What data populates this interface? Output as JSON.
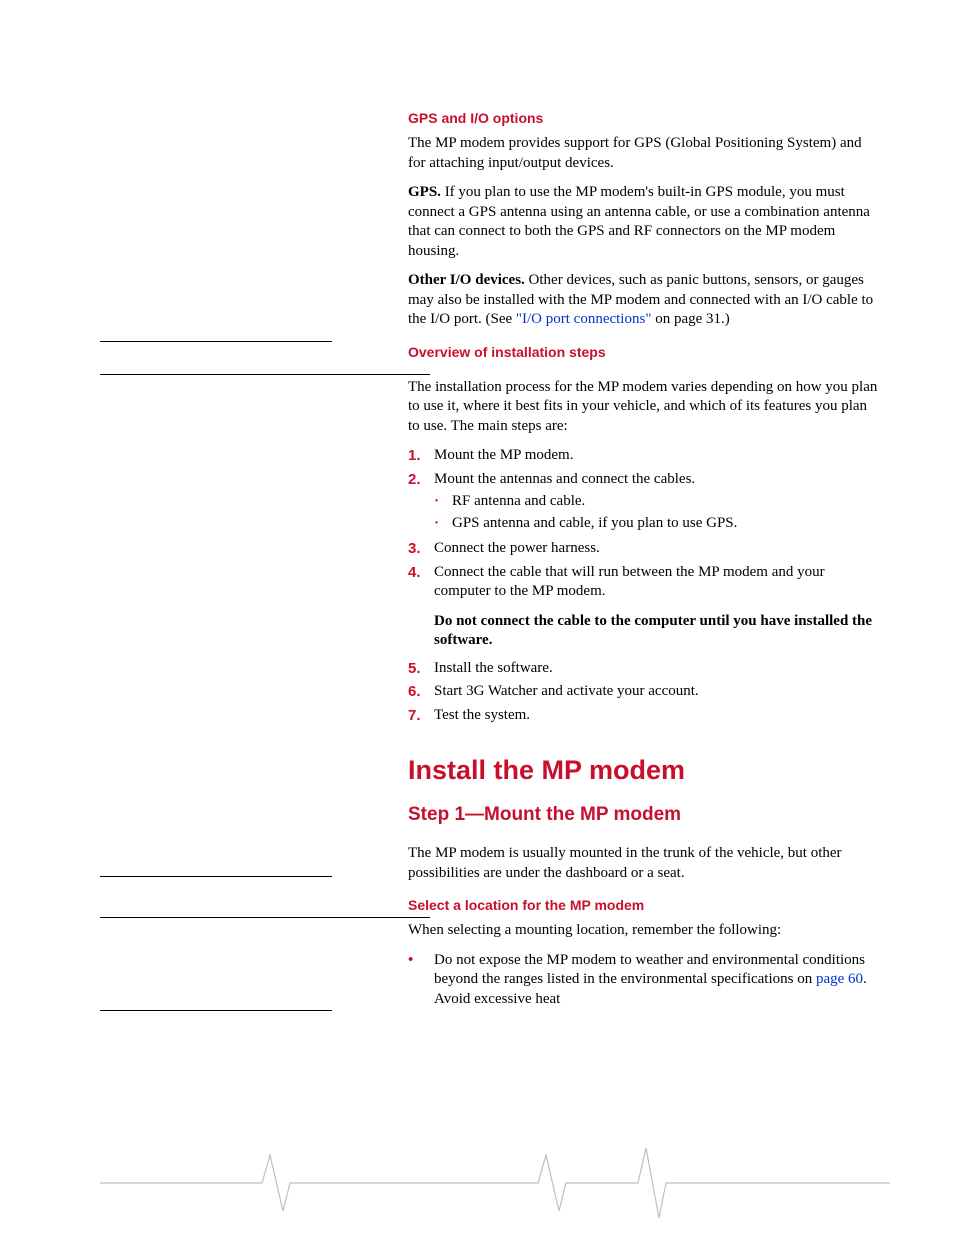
{
  "colors": {
    "accent": "#c8102e",
    "link": "#0033cc",
    "text": "#000000",
    "background": "#ffffff",
    "rule": "#000000"
  },
  "typography": {
    "body_family": "Palatino",
    "heading_family": "Arial",
    "body_size_pt": 15,
    "h1_size_pt": 27,
    "h2_size_pt": 19,
    "h3_size_pt": 14
  },
  "rules": {
    "short_top_1": 341,
    "long_top_1": 374,
    "short_top_2": 876,
    "long_top_2": 917,
    "short_top_3": 1010
  },
  "section1": {
    "heading": "GPS and I/O options",
    "p1": "The MP modem provides support for GPS (Global Positioning System) and for attaching input/output devices.",
    "p2_bold": "GPS.",
    "p2": " If you plan to use the MP modem's built-in GPS module, you must connect a GPS antenna using an antenna cable, or use a combination antenna that can connect to both the GPS and RF connectors on the MP modem housing.",
    "p3_bold": "Other I/O devices.",
    "p3a": " Other devices, such as panic buttons, sensors, or gauges may also be installed with the MP modem and connected with an I/O cable to the I/O port. (See ",
    "p3_link": "\"I/O port connections\"",
    "p3b": " on page 31.)"
  },
  "section2": {
    "heading": "Overview of installation steps",
    "intro": "The installation process for the MP modem varies depending on how you plan to use it, where it best fits in your vehicle, and which of its features you plan to use. The main steps are:",
    "steps": [
      {
        "n": "1.",
        "t": "Mount the MP modem."
      },
      {
        "n": "2.",
        "t": "Mount the antennas and connect the cables.",
        "sub": [
          "RF antenna and cable.",
          "GPS antenna and cable, if you plan to use GPS."
        ]
      },
      {
        "n": "3.",
        "t": "Connect the power harness."
      },
      {
        "n": "4.",
        "t": "Connect the cable that will run between the MP modem and your computer to the MP modem."
      },
      {
        "n": "5.",
        "t": "Install the software."
      },
      {
        "n": "6.",
        "t": "Start 3G Watcher and activate your account."
      },
      {
        "n": "7.",
        "t": "Test the system."
      }
    ],
    "warning": "Do not connect the cable to the computer until you have installed the software."
  },
  "section3": {
    "h1": "Install the MP modem",
    "h2": "Step 1—Mount the MP modem",
    "p1": "The MP modem is usually mounted in the trunk of the vehicle, but other possibilities are under the dashboard or a seat.",
    "h3": "Select a location for the MP modem",
    "p2": "When selecting a mounting location, remember the following:",
    "bullet_a": "Do not expose the MP modem to weather and environ­mental conditions beyond the ranges listed in the environ­mental specifications on ",
    "bullet_link": "page 60",
    "bullet_b": ". Avoid excessive heat"
  }
}
